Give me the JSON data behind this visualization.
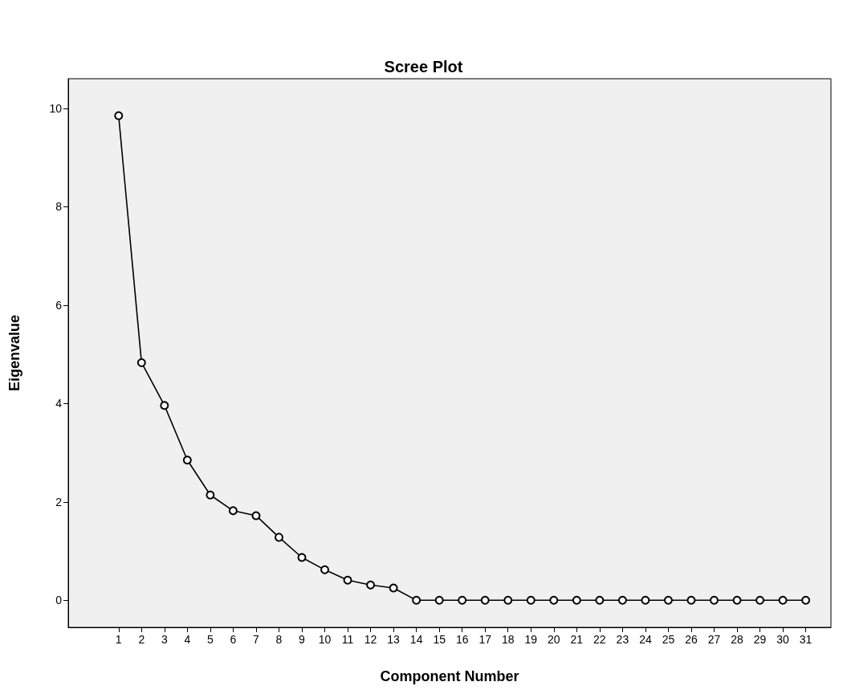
{
  "chart_data": {
    "type": "line",
    "title": "Scree Plot",
    "xlabel": "Component Number",
    "ylabel": "Eigenvalue",
    "x": [
      1,
      2,
      3,
      4,
      5,
      6,
      7,
      8,
      9,
      10,
      11,
      12,
      13,
      14,
      15,
      16,
      17,
      18,
      19,
      20,
      21,
      22,
      23,
      24,
      25,
      26,
      27,
      28,
      29,
      30,
      31
    ],
    "series": [
      {
        "color": "#000000",
        "values": [
          9.85,
          4.83,
          3.96,
          2.85,
          2.14,
          1.82,
          1.72,
          1.28,
          0.87,
          0.62,
          0.41,
          0.31,
          0.25,
          0,
          0,
          0,
          0,
          0,
          0,
          0,
          0,
          0,
          0,
          0,
          0,
          0,
          0,
          0,
          0,
          0,
          0
        ]
      }
    ],
    "xlim": [
      -1.2,
      32.1
    ],
    "xticks": [
      1,
      2,
      3,
      4,
      5,
      6,
      7,
      8,
      9,
      10,
      11,
      12,
      13,
      14,
      15,
      16,
      17,
      18,
      19,
      20,
      21,
      22,
      23,
      24,
      25,
      26,
      27,
      28,
      29,
      30,
      31
    ],
    "ylim": [
      -0.55,
      10.6
    ],
    "yticks": [
      0,
      2,
      4,
      6,
      8,
      10
    ],
    "grid": false,
    "marker": "circle",
    "line_style": "solid"
  }
}
